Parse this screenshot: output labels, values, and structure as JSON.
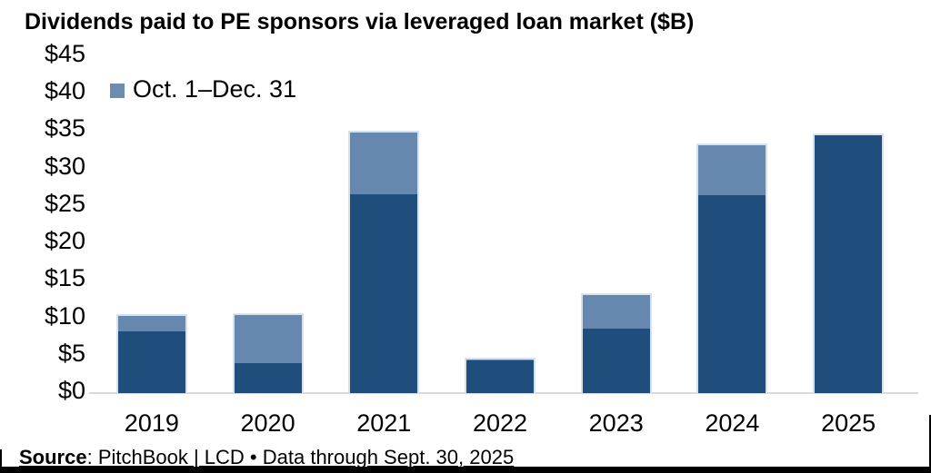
{
  "header": {
    "title": "Dividends paid to PE sponsors via leveraged loan market ($B)"
  },
  "legend": {
    "label": "Oct. 1–Dec. 31",
    "swatch_color": "#6D8CB0"
  },
  "footer": {
    "source_label": "Source",
    "source_rest": ": PitchBook | LCD • Data through Sept. 30, 2025"
  },
  "colors": {
    "dark_blue": "#1F4E7C",
    "light_blue": "#6788AE",
    "bar_outline": "#D8E2EF",
    "axis_line": "#D9D9D9"
  },
  "chart_data": {
    "type": "bar",
    "stacked": true,
    "title": "Dividends paid to PE sponsors via leveraged loan market ($B)",
    "categories": [
      "2019",
      "2020",
      "2021",
      "2022",
      "2023",
      "2024",
      "2025"
    ],
    "series": [
      {
        "id": "jan1-sept30",
        "color": "#1F4E7C",
        "values": [
          8.3,
          4.0,
          26.6,
          4.4,
          8.6,
          26.4,
          34.7
        ]
      },
      {
        "id": "oct1-dec31",
        "color": "#6788AE",
        "legend_label": "Oct. 1–Dec. 31",
        "values": [
          2.2,
          6.7,
          8.4,
          0.3,
          4.8,
          6.9,
          0.0
        ]
      }
    ],
    "totals": [
      10.5,
      10.7,
      35.0,
      4.7,
      13.4,
      33.3,
      34.7
    ],
    "xlabel": "",
    "ylabel": "",
    "ylim": [
      0,
      45
    ],
    "ytick_step": 5,
    "ytick_labels": [
      "$0",
      "$5",
      "$10",
      "$15",
      "$20",
      "$25",
      "$30",
      "$35",
      "$40",
      "$45"
    ],
    "grid": false,
    "legend_position": "top-left"
  }
}
